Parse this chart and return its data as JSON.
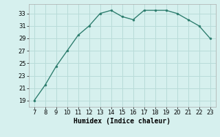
{
  "x": [
    7,
    8,
    9,
    10,
    11,
    12,
    13,
    14,
    15,
    16,
    17,
    18,
    19,
    20,
    21,
    22,
    23
  ],
  "y": [
    19,
    21.5,
    24.5,
    27,
    29.5,
    31,
    33,
    33.5,
    32.5,
    32,
    33.5,
    33.5,
    33.5,
    33,
    32,
    31,
    29
  ],
  "xlabel": "Humidex (Indice chaleur)",
  "xlim": [
    6.5,
    23.5
  ],
  "ylim": [
    18,
    34.5
  ],
  "yticks": [
    19,
    21,
    23,
    25,
    27,
    29,
    31,
    33
  ],
  "xticks": [
    7,
    8,
    9,
    10,
    11,
    12,
    13,
    14,
    15,
    16,
    17,
    18,
    19,
    20,
    21,
    22,
    23
  ],
  "line_color": "#2d7d6e",
  "marker_color": "#2d7d6e",
  "bg_color": "#d6f0ee",
  "grid_color": "#b8dbd8"
}
